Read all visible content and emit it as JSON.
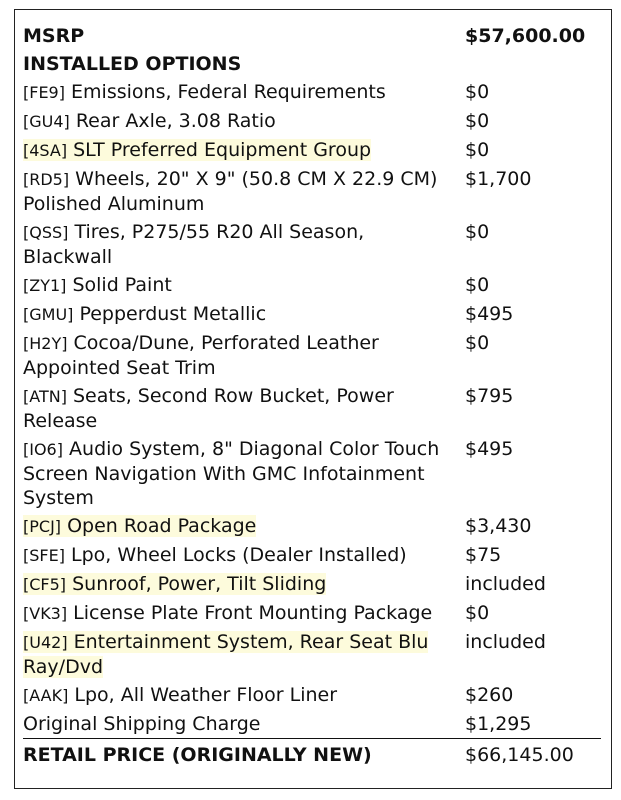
{
  "msrp": {
    "label": "MSRP",
    "value": "$57,600.00"
  },
  "installed_options_label": "INSTALLED OPTIONS",
  "options": [
    {
      "code": "[FE9]",
      "name": "Emissions, Federal Requirements",
      "price": "$0",
      "highlight": false
    },
    {
      "code": "[GU4]",
      "name": "Rear Axle, 3.08 Ratio",
      "price": "$0",
      "highlight": false
    },
    {
      "code": "[4SA]",
      "name": "SLT Preferred Equipment Group",
      "price": "$0",
      "highlight": true
    },
    {
      "code": "[RD5]",
      "name": "Wheels, 20\" X 9\" (50.8 CM X 22.9 CM) Polished Aluminum",
      "price": "$1,700",
      "highlight": false
    },
    {
      "code": "[QSS]",
      "name": "Tires, P275/55 R20 All Season, Blackwall",
      "price": "$0",
      "highlight": false
    },
    {
      "code": "[ZY1]",
      "name": "Solid Paint",
      "price": "$0",
      "highlight": false
    },
    {
      "code": "[GMU]",
      "name": "Pepperdust Metallic",
      "price": "$495",
      "highlight": false
    },
    {
      "code": "[H2Y]",
      "name": "Cocoa/Dune, Perforated Leather Appointed Seat Trim",
      "price": "$0",
      "highlight": false
    },
    {
      "code": "[ATN]",
      "name": "Seats, Second Row Bucket, Power Release",
      "price": "$795",
      "highlight": false
    },
    {
      "code": "[IO6]",
      "name": "Audio System, 8\" Diagonal Color Touch Screen Navigation With GMC Infotainment System",
      "price": "$495",
      "highlight": false
    },
    {
      "code": "[PCJ]",
      "name": "Open Road Package",
      "price": "$3,430",
      "highlight": true
    },
    {
      "code": "[SFE]",
      "name": "Lpo, Wheel Locks (Dealer Installed)",
      "price": "$75",
      "highlight": false
    },
    {
      "code": "[CF5]",
      "name": "Sunroof, Power, Tilt Sliding",
      "price": "included",
      "highlight": true
    },
    {
      "code": "[VK3]",
      "name": "License Plate Front Mounting Package",
      "price": "$0",
      "highlight": false
    },
    {
      "code": "[U42]",
      "name": "Entertainment System, Rear Seat Blu Ray/Dvd",
      "price": "included",
      "highlight": true
    },
    {
      "code": "[AAK]",
      "name": "Lpo, All Weather Floor Liner",
      "price": "$260",
      "highlight": false
    }
  ],
  "shipping": {
    "label": "Original Shipping Charge",
    "value": "$1,295"
  },
  "total": {
    "label": "RETAIL PRICE (ORIGINALLY NEW)",
    "value": "$66,145.00"
  },
  "colors": {
    "highlight": "#fdfbdc"
  }
}
